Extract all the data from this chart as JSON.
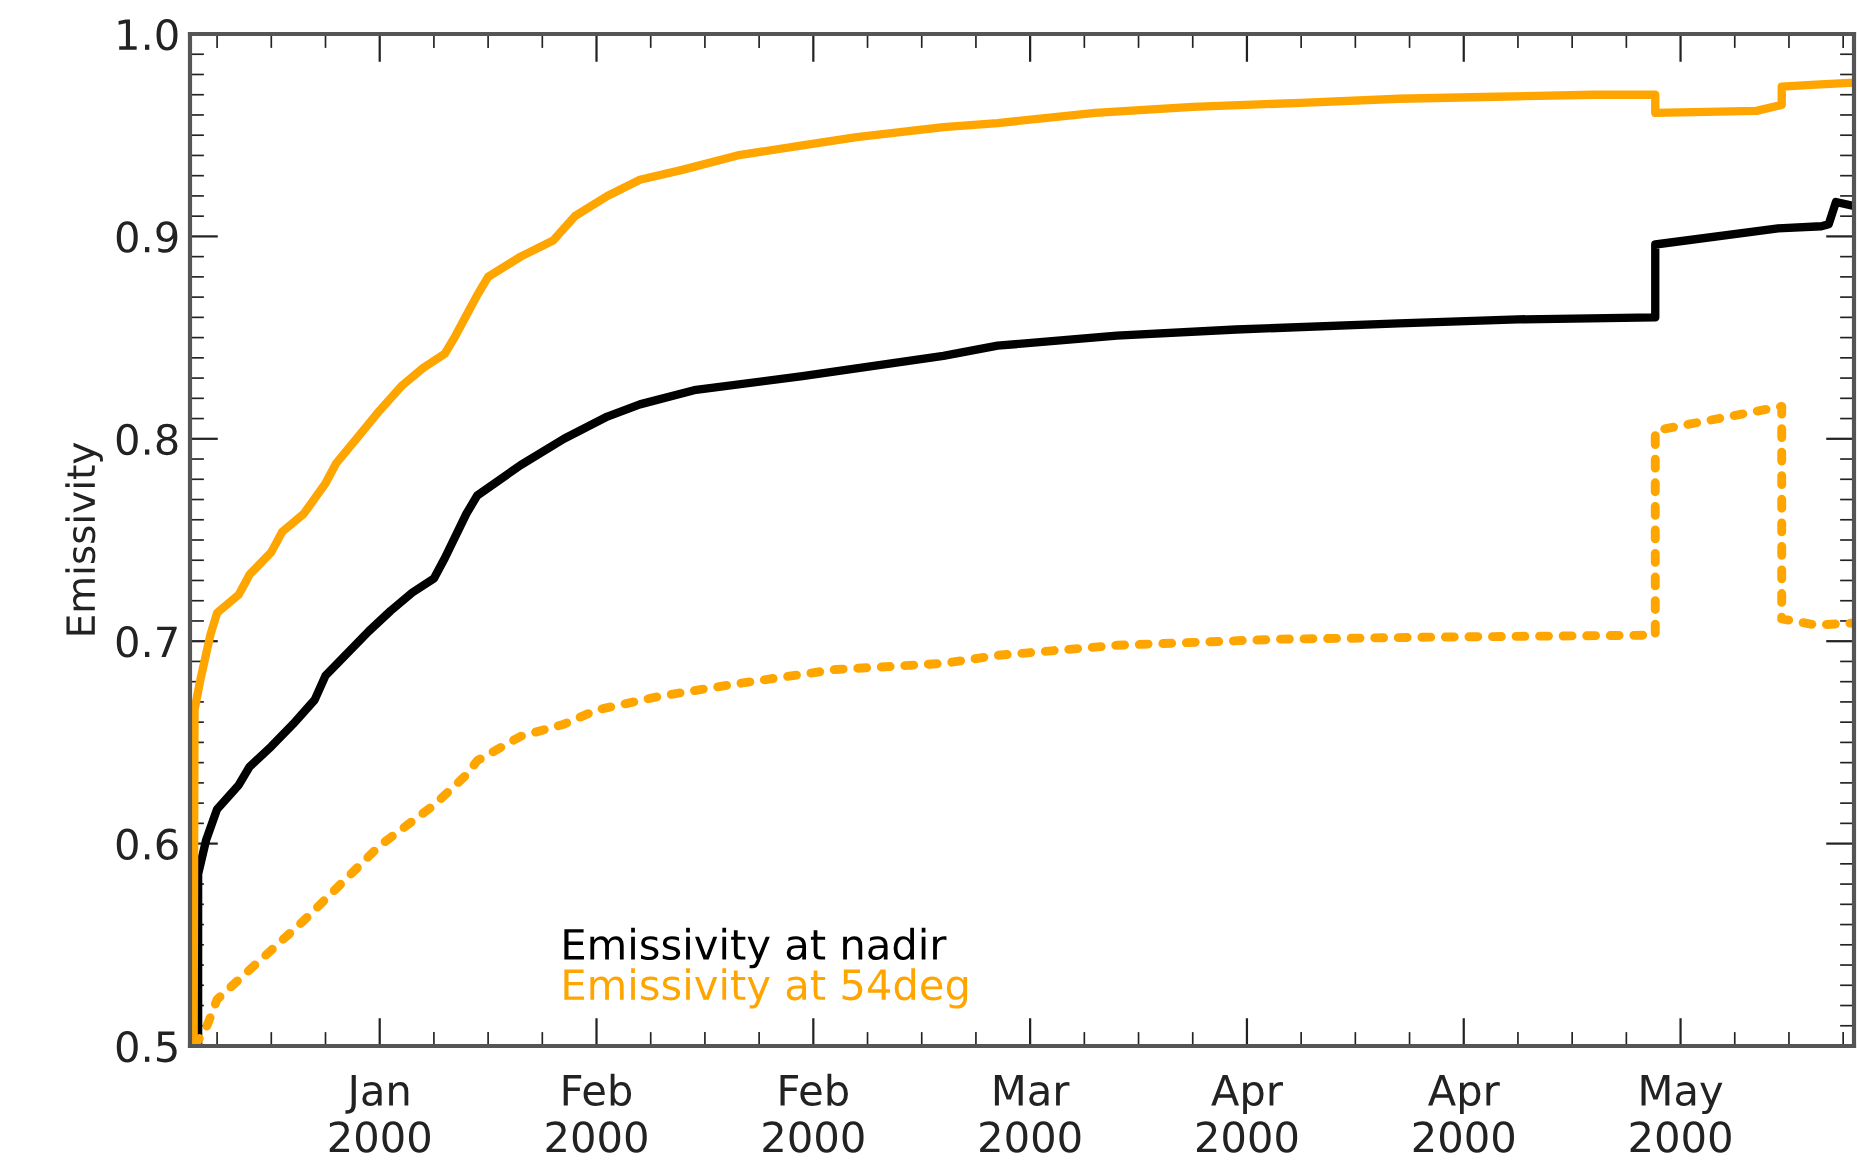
{
  "chart_data": {
    "type": "line",
    "ylabel": "Emissivity",
    "xlim": [
      "1999-12-28T12:00",
      "2000-05-30"
    ],
    "ylim": [
      0.5,
      1.0
    ],
    "xticks": [
      {
        "value": "2000-01-15",
        "label": "Jan\n2000"
      },
      {
        "value": "2000-02-04",
        "label": "Feb\n2000"
      },
      {
        "value": "2000-02-24",
        "label": "Feb\n2000"
      },
      {
        "value": "2000-03-15",
        "label": "Mar\n2000"
      },
      {
        "value": "2000-04-04",
        "label": "Apr\n2000"
      },
      {
        "value": "2000-04-24",
        "label": "Apr\n2000"
      },
      {
        "value": "2000-05-14",
        "label": "May\n2000"
      }
    ],
    "yticks": [
      {
        "value": 0.5,
        "label": "0.5"
      },
      {
        "value": 0.6,
        "label": "0.6"
      },
      {
        "value": 0.7,
        "label": "0.7"
      },
      {
        "value": 0.8,
        "label": "0.8"
      },
      {
        "value": 0.9,
        "label": "0.9"
      },
      {
        "value": 1.0,
        "label": "1.0"
      }
    ],
    "legend": "bottom left",
    "marker": "none",
    "series": [
      {
        "name": "Emissivity at nadir",
        "color": "#000000",
        "line_style": "solid",
        "x": [
          "1999-12-29T06:00",
          "1999-12-29T06:00",
          "1999-12-30",
          "1999-12-31",
          "2000-01-02",
          "2000-01-03",
          "2000-01-05",
          "2000-01-07",
          "2000-01-09",
          "2000-01-10",
          "2000-01-12",
          "2000-01-14",
          "2000-01-16",
          "2000-01-18",
          "2000-01-20",
          "2000-01-21",
          "2000-01-23",
          "2000-01-24",
          "2000-01-28",
          "2000-02-01",
          "2000-02-05",
          "2000-02-08",
          "2000-02-13",
          "2000-02-23",
          "2000-03-07",
          "2000-03-12",
          "2000-03-23",
          "2000-04-03",
          "2000-04-18",
          "2000-04-29",
          "2000-05-11T16:00",
          "2000-05-11T16:00",
          "2000-05-23",
          "2000-05-27",
          "2000-05-27T16:00",
          "2000-05-28T08:00",
          "2000-05-30"
        ],
        "values": [
          0.5,
          0.585,
          0.602,
          0.617,
          0.629,
          0.638,
          0.648,
          0.659,
          0.671,
          0.683,
          0.694,
          0.705,
          0.715,
          0.724,
          0.731,
          0.741,
          0.763,
          0.772,
          0.787,
          0.8,
          0.811,
          0.817,
          0.824,
          0.831,
          0.841,
          0.846,
          0.851,
          0.854,
          0.857,
          0.859,
          0.86,
          0.896,
          0.904,
          0.905,
          0.906,
          0.917,
          0.915
        ]
      },
      {
        "name": "Emissivity at 54deg",
        "color": "#ffa500",
        "line_style": "solid",
        "x": [
          "1999-12-28T20:00",
          "1999-12-28T22:00",
          "1999-12-29T11:00",
          "1999-12-30T09:00",
          "1999-12-31",
          "2000-01-02",
          "2000-01-03",
          "2000-01-05",
          "2000-01-06",
          "2000-01-08",
          "2000-01-10",
          "2000-01-11",
          "2000-01-13",
          "2000-01-15",
          "2000-01-17",
          "2000-01-19",
          "2000-01-21",
          "2000-01-22",
          "2000-01-23",
          "2000-01-24",
          "2000-01-25",
          "2000-01-28",
          "2000-01-31",
          "2000-02-02",
          "2000-02-05",
          "2000-02-08",
          "2000-02-12",
          "2000-02-17",
          "2000-02-23",
          "2000-02-28",
          "2000-03-07",
          "2000-03-12",
          "2000-03-21",
          "2000-03-30",
          "2000-04-09",
          "2000-04-18",
          "2000-04-27",
          "2000-05-06",
          "2000-05-11T16:00",
          "2000-05-11T16:00",
          "2000-05-21",
          "2000-05-23T08:00",
          "2000-05-23T08:00",
          "2000-05-26T12:00",
          "2000-05-30"
        ],
        "values": [
          0.5,
          0.666,
          0.681,
          0.703,
          0.714,
          0.723,
          0.733,
          0.744,
          0.754,
          0.763,
          0.778,
          0.788,
          0.801,
          0.814,
          0.826,
          0.835,
          0.842,
          0.851,
          0.861,
          0.871,
          0.88,
          0.89,
          0.898,
          0.91,
          0.92,
          0.928,
          0.933,
          0.94,
          0.945,
          0.949,
          0.954,
          0.956,
          0.961,
          0.964,
          0.966,
          0.968,
          0.969,
          0.97,
          0.97,
          0.961,
          0.962,
          0.965,
          0.974,
          0.975,
          0.976
        ]
      },
      {
        "color": "#ffa500",
        "line_style": "dotted",
        "x": [
          "1999-12-28T22:00",
          "1999-12-30",
          "1999-12-31",
          "2000-01-08",
          "2000-01-15",
          "2000-01-20",
          "2000-01-23",
          "2000-01-24",
          "2000-01-28",
          "2000-02-01",
          "2000-02-04",
          "2000-02-10",
          "2000-02-17",
          "2000-02-26",
          "2000-03-07",
          "2000-03-12",
          "2000-03-23",
          "2000-04-07",
          "2000-04-21",
          "2000-05-11T16:00",
          "2000-05-11T16:00",
          "2000-05-23T08:00",
          "2000-05-23T08:00",
          "2000-05-26T12:00",
          "2000-05-30"
        ],
        "values": [
          0.5,
          0.509,
          0.523,
          0.562,
          0.599,
          0.619,
          0.634,
          0.641,
          0.653,
          0.659,
          0.666,
          0.673,
          0.679,
          0.686,
          0.689,
          0.693,
          0.698,
          0.701,
          0.702,
          0.703,
          0.804,
          0.816,
          0.711,
          0.708,
          0.709
        ]
      }
    ]
  }
}
